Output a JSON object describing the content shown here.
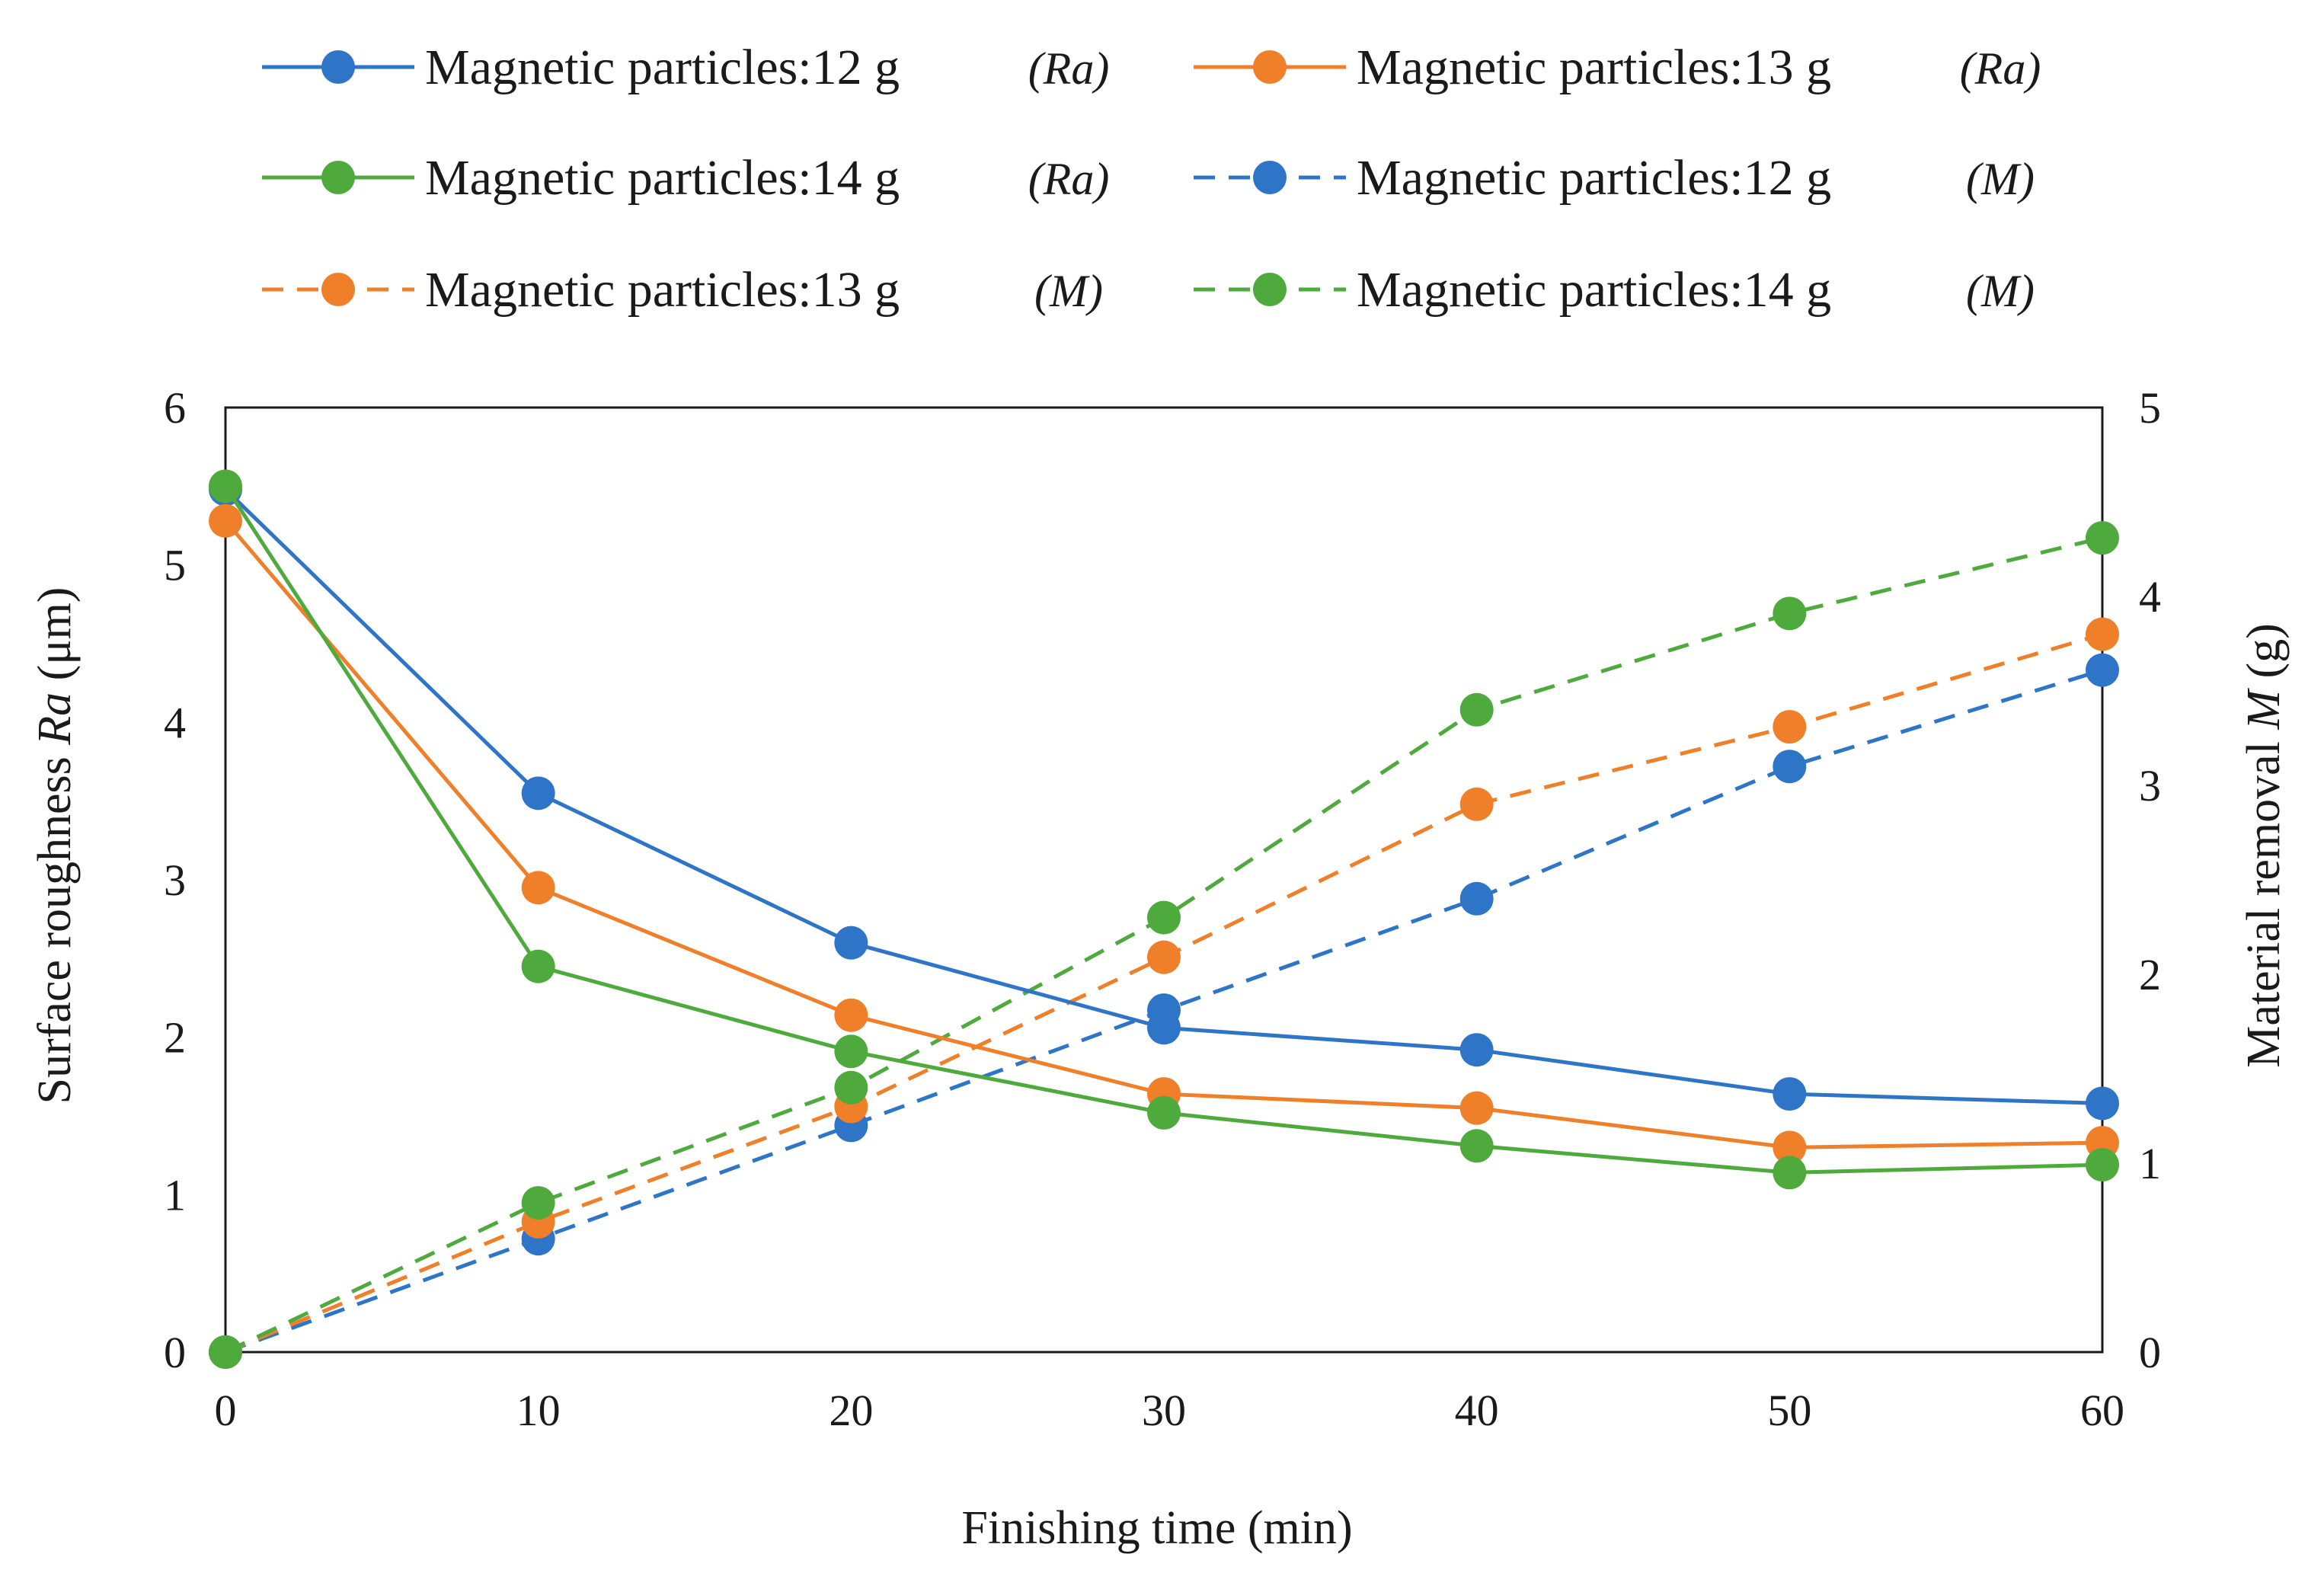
{
  "chart_data": {
    "type": "line",
    "xlabel": "Finishing time (min)",
    "ylabel_left": {
      "prefix": "Surface roughness ",
      "italic": "Ra",
      "suffix": " (μm)"
    },
    "ylabel_right": {
      "prefix": "Material removal ",
      "italic": "M",
      "suffix": " (g)"
    },
    "x_ticks": [
      "0",
      "10",
      "20",
      "30",
      "40",
      "50",
      "60"
    ],
    "y_left_ticks": [
      "0",
      "1",
      "2",
      "3",
      "4",
      "5",
      "6"
    ],
    "y_right_ticks": [
      "0",
      "1",
      "2",
      "3",
      "4",
      "5"
    ],
    "xlim": [
      0,
      60
    ],
    "ylim_left": [
      0,
      6
    ],
    "ylim_right": [
      0,
      5
    ],
    "grid": false,
    "legend_position": "top",
    "x": [
      0,
      10,
      20,
      30,
      40,
      50,
      60
    ],
    "series": [
      {
        "name": "Magnetic particles:12 g",
        "tag": "(Ra)",
        "axis": "left",
        "style": "solid",
        "color": "#2E75C8",
        "values": [
          5.48,
          3.55,
          2.6,
          2.06,
          1.92,
          1.64,
          1.58
        ]
      },
      {
        "name": "Magnetic particles:13 g",
        "tag": "(Ra)",
        "axis": "left",
        "style": "solid",
        "color": "#F07F2A",
        "values": [
          5.28,
          2.95,
          2.14,
          1.64,
          1.55,
          1.3,
          1.33
        ]
      },
      {
        "name": "Magnetic particles:14 g",
        "tag": "(Ra)",
        "axis": "left",
        "style": "solid",
        "color": "#4EAA3C",
        "values": [
          5.5,
          2.45,
          1.91,
          1.52,
          1.31,
          1.14,
          1.19
        ]
      },
      {
        "name": "Magnetic particles:12 g",
        "tag": "(M)",
        "axis": "right",
        "style": "dashed",
        "color": "#2E75C8",
        "values": [
          0,
          0.6,
          1.2,
          1.81,
          2.4,
          3.1,
          3.61
        ]
      },
      {
        "name": "Magnetic particles:13 g",
        "tag": "(M)",
        "axis": "right",
        "style": "dashed",
        "color": "#F07F2A",
        "values": [
          0,
          0.69,
          1.3,
          2.09,
          2.9,
          3.31,
          3.8
        ]
      },
      {
        "name": "Magnetic particles:14 g",
        "tag": "(M)",
        "axis": "right",
        "style": "dashed",
        "color": "#4EAA3C",
        "values": [
          0,
          0.79,
          1.4,
          2.3,
          3.4,
          3.91,
          4.31
        ]
      }
    ]
  }
}
